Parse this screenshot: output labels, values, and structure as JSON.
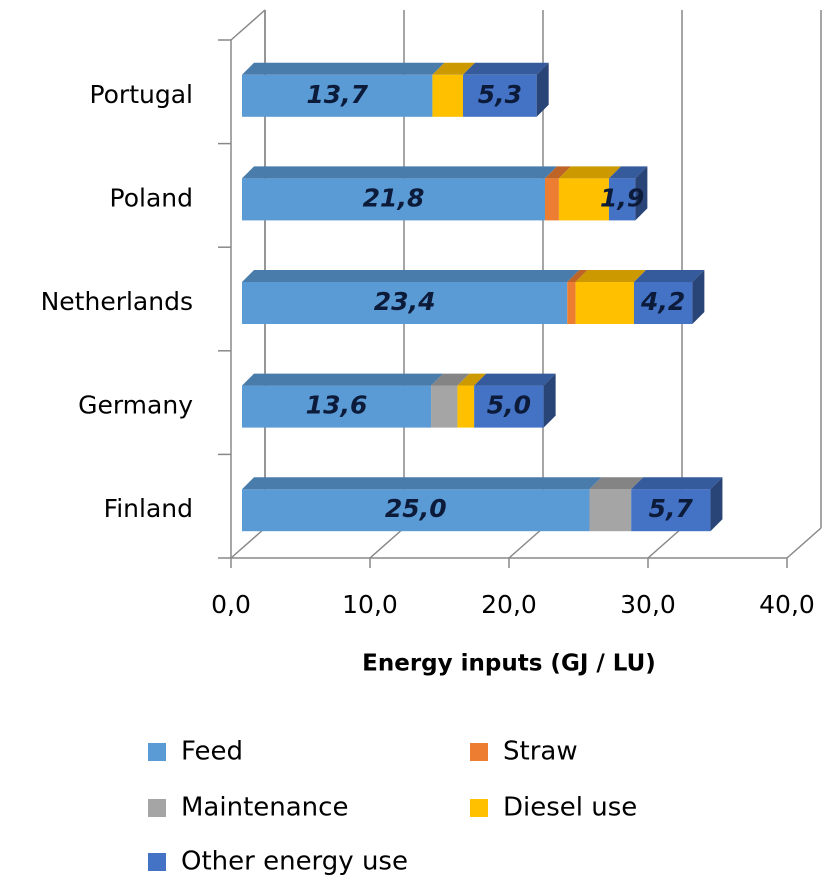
{
  "chart_data": {
    "type": "bar",
    "orientation": "horizontal",
    "stacked": true,
    "three_d": true,
    "x_label": "Energy inputs (GJ / LU)",
    "categories": [
      "Portugal",
      "Poland",
      "Netherlands",
      "Germany",
      "Finland"
    ],
    "series": [
      {
        "name": "Feed",
        "color": "#5b9bd5",
        "values": [
          13.7,
          21.8,
          23.4,
          13.6,
          25.0
        ],
        "value_labels": [
          "13,7",
          "21,8",
          "23,4",
          "13,6",
          "25,0"
        ]
      },
      {
        "name": "Straw",
        "color": "#ed7d31",
        "values": [
          null,
          1.0,
          0.6,
          null,
          null
        ]
      },
      {
        "name": "Maintenance",
        "color": "#a5a5a5",
        "values": [
          null,
          null,
          null,
          1.9,
          3.0
        ]
      },
      {
        "name": "Diesel use",
        "color": "#ffc000",
        "values": [
          2.2,
          3.6,
          4.2,
          1.2,
          null
        ]
      },
      {
        "name": "Other energy use",
        "color": "#4472c4",
        "values": [
          5.3,
          1.9,
          4.2,
          5.0,
          5.7
        ],
        "value_labels": [
          "5,3",
          "1,9",
          "4,2",
          "5,0",
          "5,7"
        ]
      }
    ],
    "xlim": [
      0,
      40
    ],
    "xticks": [
      {
        "value": 0,
        "label": "0,0"
      },
      {
        "value": 10,
        "label": "10,0"
      },
      {
        "value": 20,
        "label": "20,0"
      },
      {
        "value": 30,
        "label": "30,0"
      },
      {
        "value": 40,
        "label": "40,0"
      }
    ],
    "grid": true
  }
}
